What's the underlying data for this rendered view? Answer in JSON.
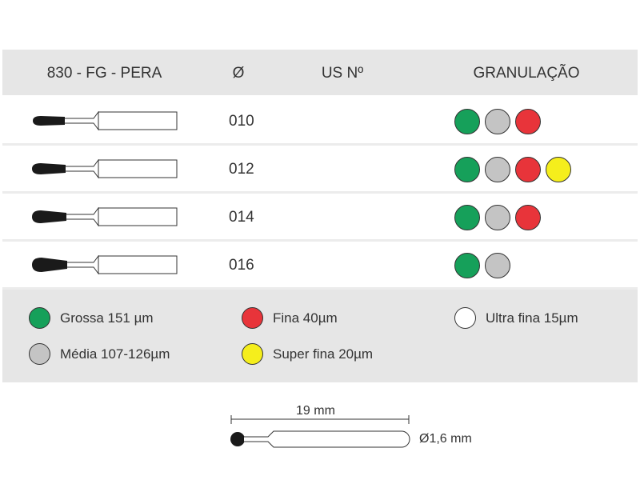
{
  "header": {
    "model": "830 - FG - PERA",
    "diameter": "Ø",
    "us_no": "US Nº",
    "granulation": "GRANULAÇÃO"
  },
  "rows": [
    {
      "diameter": "010",
      "grits": [
        "green",
        "gray",
        "red"
      ]
    },
    {
      "diameter": "012",
      "grits": [
        "green",
        "gray",
        "red",
        "yellow"
      ]
    },
    {
      "diameter": "014",
      "grits": [
        "green",
        "gray",
        "red"
      ]
    },
    {
      "diameter": "016",
      "grits": [
        "green",
        "gray"
      ]
    }
  ],
  "legend": [
    {
      "color": "green",
      "label": "Grossa 151 µm"
    },
    {
      "color": "red",
      "label": "Fina 40µm"
    },
    {
      "color": "white",
      "label": "Ultra fina 15µm"
    },
    {
      "color": "gray",
      "label": "Média 107-126µm"
    },
    {
      "color": "yellow",
      "label": "Super fina 20µm"
    }
  ],
  "colors": {
    "green": "#16a05a",
    "gray": "#c4c4c4",
    "red": "#e8343a",
    "yellow": "#f5ee1c",
    "white": "#ffffff"
  },
  "dimensions": {
    "length": "19 mm",
    "diameter": "Ø1,6 mm"
  }
}
